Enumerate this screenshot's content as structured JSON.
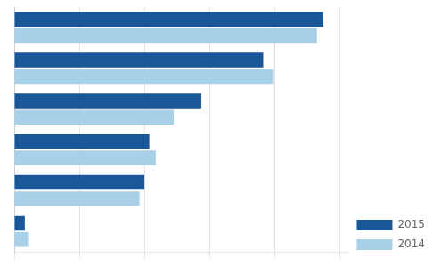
{
  "chart_data": {
    "type": "bar",
    "orientation": "horizontal",
    "categories": [
      null,
      null,
      null,
      null,
      null,
      null
    ],
    "series": [
      {
        "name": "2015",
        "color": "#1a5799",
        "values": [
          1900,
          1530,
          1150,
          830,
          800,
          65
        ]
      },
      {
        "name": "2014",
        "color": "#a8d0e8",
        "values": [
          1860,
          1590,
          980,
          870,
          770,
          85
        ]
      }
    ],
    "xlim": [
      0,
      2050
    ],
    "xticks": [
      0,
      400,
      800,
      1200,
      1600,
      2000
    ],
    "grid": true,
    "legend": "lower right",
    "tick_labels": false
  }
}
